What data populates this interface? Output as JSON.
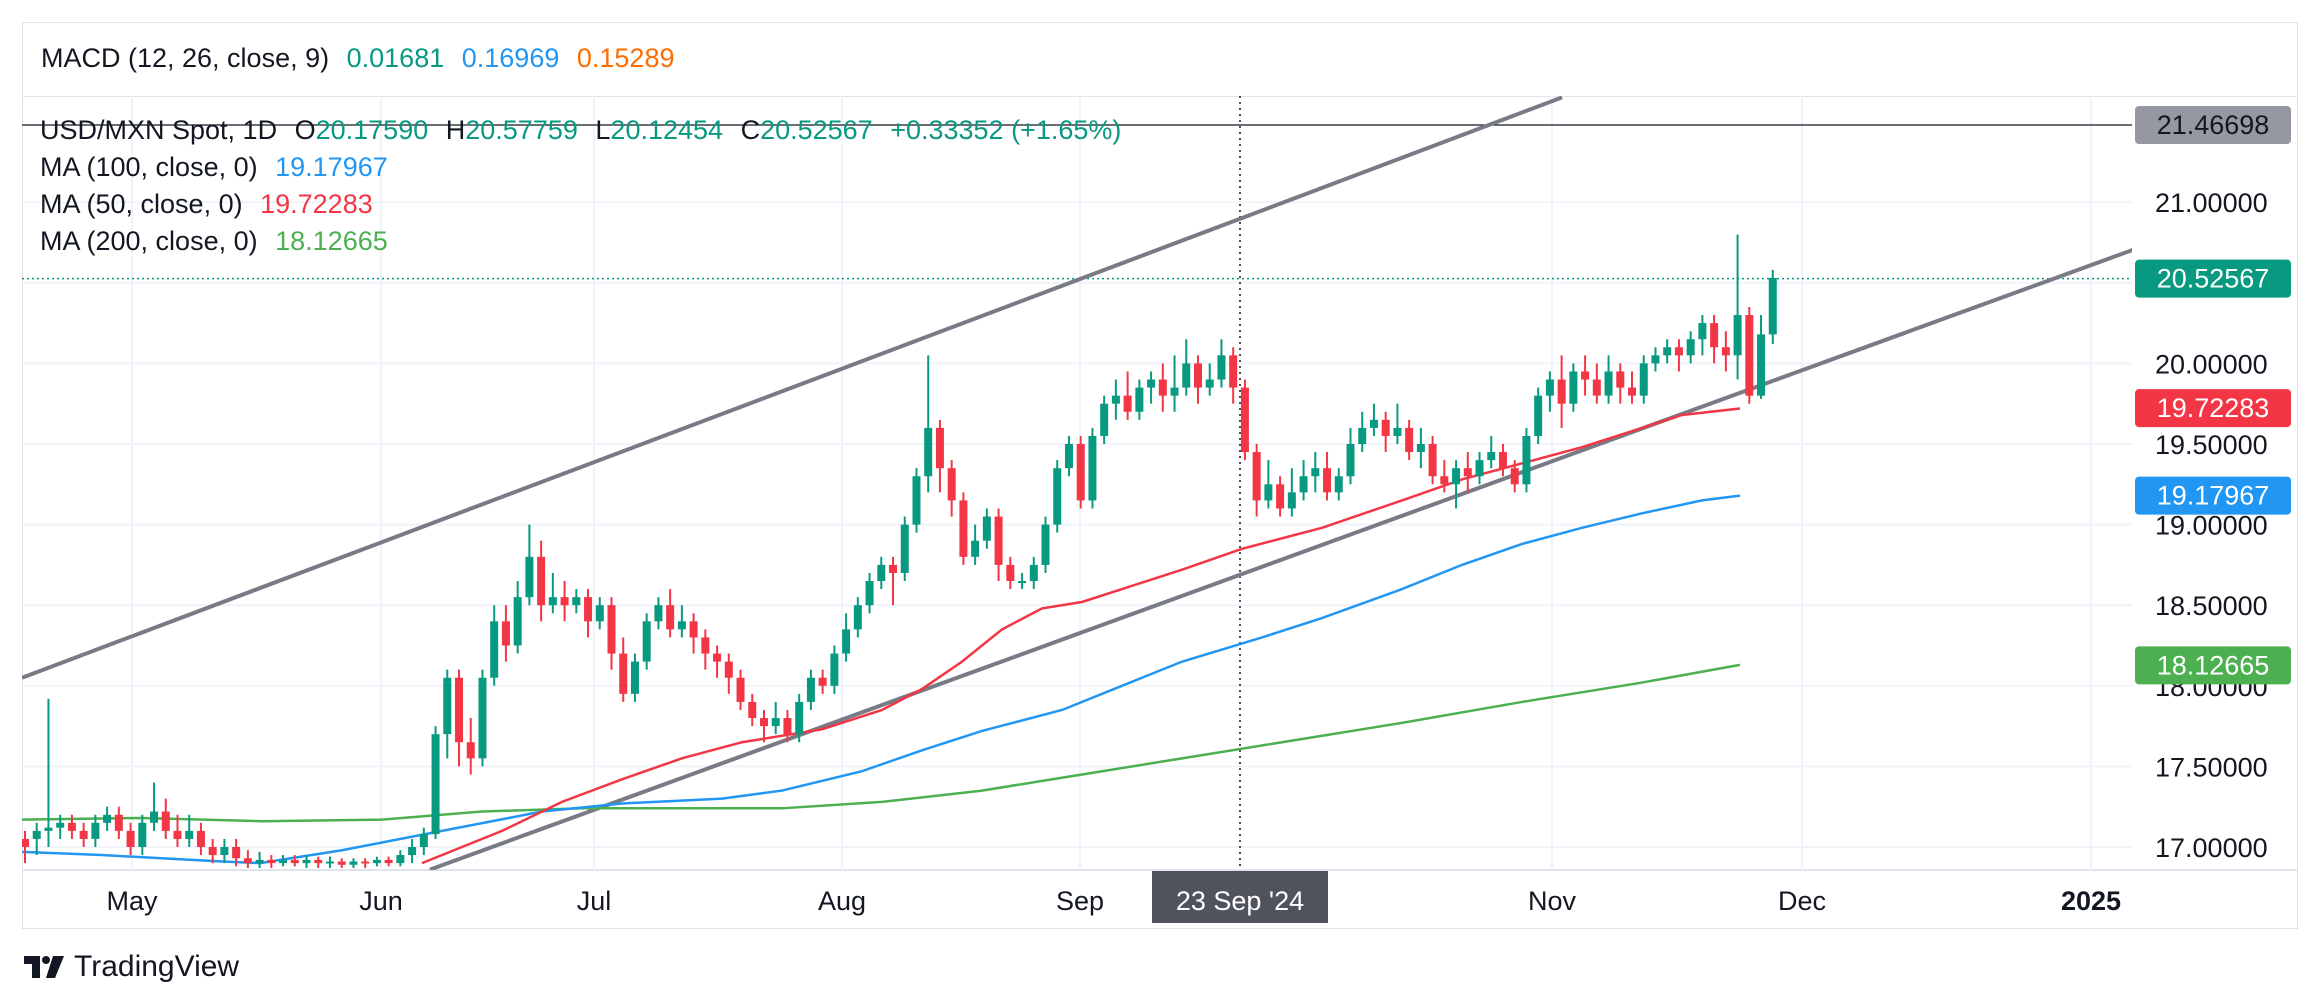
{
  "macd": {
    "label": "MACD (12, 26, close, 9)",
    "v1": "0.01681",
    "v2": "0.16969",
    "v3": "0.15289",
    "c1": "#089981",
    "c2": "#2196f3",
    "c3": "#ff6d00"
  },
  "header": {
    "symbol": "USD/MXN Spot, 1D",
    "o_label": "O",
    "o": "20.17590",
    "h_label": "H",
    "h": "20.57759",
    "l_label": "L",
    "l": "20.12454",
    "c_label": "C",
    "c": "20.52567",
    "change": "+0.33352 (+1.65%)"
  },
  "ma": [
    {
      "label": "MA (100, close, 0)",
      "value": "19.17967",
      "color": "#2196f3"
    },
    {
      "label": "MA (50, close, 0)",
      "value": "19.72283",
      "color": "#f23645"
    },
    {
      "label": "MA (200, close, 0)",
      "value": "18.12665",
      "color": "#4caf50"
    }
  ],
  "crosshair": {
    "x_label": "23 Sep '24",
    "y_label": "21.46698"
  },
  "brand": {
    "name": "TradingView"
  },
  "colors": {
    "up": "#089981",
    "down": "#f23645",
    "channel": "#787b86",
    "grid": "#f0f3fa"
  },
  "chart_data": {
    "type": "candlestick",
    "title": "USD/MXN Spot, 1D",
    "x_labels": [
      "May",
      "Jun",
      "Jul",
      "Aug",
      "Sep",
      "Dec",
      "2025"
    ],
    "x_label_nov": "Nov",
    "y_ticks": [
      "17.00000",
      "17.50000",
      "18.00000",
      "18.50000",
      "19.00000",
      "19.50000",
      "20.00000",
      "21.00000"
    ],
    "ylim": [
      16.86,
      21.65
    ],
    "last_price": "20.52567",
    "price_labels": [
      {
        "value": "20.52567",
        "color": "#089981"
      },
      {
        "value": "19.72283",
        "color": "#f23645"
      },
      {
        "value": "19.17967",
        "color": "#2196f3"
      },
      {
        "value": "18.12665",
        "color": "#4caf50"
      }
    ],
    "candles": [
      [
        17.05,
        17.0,
        16.9,
        17.1
      ],
      [
        17.05,
        17.1,
        16.95,
        17.15
      ],
      [
        17.1,
        17.12,
        17.0,
        17.92
      ],
      [
        17.12,
        17.15,
        17.05,
        17.2
      ],
      [
        17.15,
        17.1,
        17.05,
        17.2
      ],
      [
        17.1,
        17.05,
        17.0,
        17.15
      ],
      [
        17.05,
        17.15,
        17.0,
        17.2
      ],
      [
        17.15,
        17.2,
        17.1,
        17.25
      ],
      [
        17.2,
        17.1,
        17.05,
        17.25
      ],
      [
        17.1,
        17.0,
        16.95,
        17.15
      ],
      [
        17.0,
        17.15,
        16.95,
        17.2
      ],
      [
        17.15,
        17.22,
        17.1,
        17.4
      ],
      [
        17.22,
        17.1,
        17.05,
        17.3
      ],
      [
        17.1,
        17.05,
        17.0,
        17.2
      ],
      [
        17.05,
        17.1,
        17.0,
        17.2
      ],
      [
        17.1,
        17.0,
        16.95,
        17.15
      ],
      [
        17.0,
        16.95,
        16.9,
        17.05
      ],
      [
        16.95,
        17.0,
        16.9,
        17.05
      ],
      [
        17.0,
        16.93,
        16.88,
        17.05
      ],
      [
        16.93,
        16.9,
        16.87,
        16.98
      ],
      [
        16.9,
        16.92,
        16.87,
        16.97
      ],
      [
        16.92,
        16.9,
        16.87,
        16.95
      ],
      [
        16.9,
        16.92,
        16.88,
        16.95
      ],
      [
        16.92,
        16.9,
        16.88,
        16.95
      ],
      [
        16.9,
        16.92,
        16.87,
        16.95
      ],
      [
        16.92,
        16.9,
        16.87,
        16.94
      ],
      [
        16.9,
        16.91,
        16.87,
        16.94
      ],
      [
        16.91,
        16.89,
        16.87,
        16.93
      ],
      [
        16.89,
        16.91,
        16.87,
        16.93
      ],
      [
        16.91,
        16.9,
        16.87,
        16.93
      ],
      [
        16.9,
        16.92,
        16.88,
        16.94
      ],
      [
        16.92,
        16.9,
        16.88,
        16.94
      ],
      [
        16.9,
        16.95,
        16.88,
        16.98
      ],
      [
        16.95,
        17.0,
        16.9,
        17.05
      ],
      [
        17.0,
        17.08,
        16.95,
        17.12
      ],
      [
        17.08,
        17.7,
        17.05,
        17.75
      ],
      [
        17.7,
        18.05,
        17.55,
        18.1
      ],
      [
        18.05,
        17.65,
        17.5,
        18.1
      ],
      [
        17.65,
        17.55,
        17.45,
        17.8
      ],
      [
        17.55,
        18.05,
        17.5,
        18.1
      ],
      [
        18.05,
        18.4,
        18.0,
        18.5
      ],
      [
        18.4,
        18.25,
        18.15,
        18.5
      ],
      [
        18.25,
        18.55,
        18.2,
        18.65
      ],
      [
        18.55,
        18.8,
        18.5,
        19.0
      ],
      [
        18.8,
        18.5,
        18.4,
        18.9
      ],
      [
        18.5,
        18.55,
        18.45,
        18.7
      ],
      [
        18.55,
        18.5,
        18.4,
        18.65
      ],
      [
        18.5,
        18.55,
        18.45,
        18.6
      ],
      [
        18.55,
        18.4,
        18.3,
        18.6
      ],
      [
        18.4,
        18.5,
        18.35,
        18.55
      ],
      [
        18.5,
        18.2,
        18.1,
        18.55
      ],
      [
        18.2,
        17.95,
        17.9,
        18.3
      ],
      [
        17.95,
        18.15,
        17.9,
        18.2
      ],
      [
        18.15,
        18.4,
        18.1,
        18.45
      ],
      [
        18.4,
        18.5,
        18.35,
        18.55
      ],
      [
        18.5,
        18.35,
        18.3,
        18.6
      ],
      [
        18.35,
        18.4,
        18.3,
        18.5
      ],
      [
        18.4,
        18.3,
        18.2,
        18.45
      ],
      [
        18.3,
        18.2,
        18.1,
        18.35
      ],
      [
        18.2,
        18.15,
        18.05,
        18.25
      ],
      [
        18.15,
        18.05,
        17.95,
        18.2
      ],
      [
        18.05,
        17.9,
        17.85,
        18.1
      ],
      [
        17.9,
        17.8,
        17.75,
        17.95
      ],
      [
        17.8,
        17.75,
        17.65,
        17.85
      ],
      [
        17.75,
        17.8,
        17.7,
        17.9
      ],
      [
        17.8,
        17.7,
        17.65,
        17.85
      ],
      [
        17.7,
        17.9,
        17.65,
        17.95
      ],
      [
        17.9,
        18.05,
        17.85,
        18.1
      ],
      [
        18.05,
        18.0,
        17.95,
        18.1
      ],
      [
        18.0,
        18.2,
        17.95,
        18.25
      ],
      [
        18.2,
        18.35,
        18.15,
        18.45
      ],
      [
        18.35,
        18.5,
        18.3,
        18.55
      ],
      [
        18.5,
        18.65,
        18.45,
        18.7
      ],
      [
        18.65,
        18.75,
        18.6,
        18.8
      ],
      [
        18.75,
        18.7,
        18.5,
        18.8
      ],
      [
        18.7,
        19.0,
        18.65,
        19.05
      ],
      [
        19.0,
        19.3,
        18.95,
        19.35
      ],
      [
        19.3,
        19.6,
        19.2,
        20.05
      ],
      [
        19.6,
        19.35,
        19.2,
        19.65
      ],
      [
        19.35,
        19.15,
        19.05,
        19.4
      ],
      [
        19.15,
        18.8,
        18.75,
        19.2
      ],
      [
        18.8,
        18.9,
        18.75,
        19.0
      ],
      [
        18.9,
        19.05,
        18.85,
        19.1
      ],
      [
        19.05,
        18.75,
        18.65,
        19.1
      ],
      [
        18.75,
        18.65,
        18.6,
        18.8
      ],
      [
        18.65,
        18.65,
        18.6,
        18.7
      ],
      [
        18.65,
        18.75,
        18.6,
        18.8
      ],
      [
        18.75,
        19.0,
        18.7,
        19.05
      ],
      [
        19.0,
        19.35,
        18.95,
        19.4
      ],
      [
        19.35,
        19.5,
        19.3,
        19.55
      ],
      [
        19.5,
        19.15,
        19.1,
        19.55
      ],
      [
        19.15,
        19.55,
        19.1,
        19.6
      ],
      [
        19.55,
        19.75,
        19.5,
        19.8
      ],
      [
        19.75,
        19.8,
        19.65,
        19.9
      ],
      [
        19.8,
        19.7,
        19.65,
        19.95
      ],
      [
        19.7,
        19.85,
        19.65,
        19.9
      ],
      [
        19.85,
        19.9,
        19.75,
        19.95
      ],
      [
        19.9,
        19.8,
        19.7,
        20.0
      ],
      [
        19.8,
        19.85,
        19.7,
        20.05
      ],
      [
        19.85,
        20.0,
        19.8,
        20.15
      ],
      [
        20.0,
        19.85,
        19.75,
        20.05
      ],
      [
        19.85,
        19.9,
        19.8,
        20.0
      ],
      [
        19.9,
        20.05,
        19.85,
        20.15
      ],
      [
        20.05,
        19.85,
        19.75,
        20.1
      ],
      [
        19.85,
        19.45,
        19.4,
        19.9
      ],
      [
        19.45,
        19.15,
        19.05,
        19.5
      ],
      [
        19.15,
        19.25,
        19.1,
        19.4
      ],
      [
        19.25,
        19.1,
        19.05,
        19.3
      ],
      [
        19.1,
        19.2,
        19.05,
        19.35
      ],
      [
        19.2,
        19.3,
        19.15,
        19.4
      ],
      [
        19.3,
        19.35,
        19.2,
        19.45
      ],
      [
        19.35,
        19.2,
        19.15,
        19.45
      ],
      [
        19.2,
        19.3,
        19.15,
        19.35
      ],
      [
        19.3,
        19.5,
        19.25,
        19.6
      ],
      [
        19.5,
        19.6,
        19.45,
        19.7
      ],
      [
        19.6,
        19.65,
        19.55,
        19.75
      ],
      [
        19.65,
        19.55,
        19.45,
        19.7
      ],
      [
        19.55,
        19.6,
        19.5,
        19.75
      ],
      [
        19.6,
        19.45,
        19.4,
        19.65
      ],
      [
        19.45,
        19.5,
        19.35,
        19.6
      ],
      [
        19.5,
        19.3,
        19.25,
        19.55
      ],
      [
        19.3,
        19.25,
        19.2,
        19.4
      ],
      [
        19.25,
        19.35,
        19.1,
        19.4
      ],
      [
        19.35,
        19.3,
        19.2,
        19.45
      ],
      [
        19.3,
        19.4,
        19.25,
        19.45
      ],
      [
        19.4,
        19.45,
        19.35,
        19.55
      ],
      [
        19.45,
        19.35,
        19.3,
        19.5
      ],
      [
        19.35,
        19.25,
        19.2,
        19.4
      ],
      [
        19.25,
        19.55,
        19.2,
        19.6
      ],
      [
        19.55,
        19.8,
        19.5,
        19.85
      ],
      [
        19.8,
        19.9,
        19.7,
        19.95
      ],
      [
        19.9,
        19.75,
        19.6,
        20.05
      ],
      [
        19.75,
        19.95,
        19.7,
        20.0
      ],
      [
        19.95,
        19.9,
        19.8,
        20.05
      ],
      [
        19.9,
        19.8,
        19.75,
        20.0
      ],
      [
        19.8,
        19.95,
        19.75,
        20.05
      ],
      [
        19.95,
        19.85,
        19.75,
        20.0
      ],
      [
        19.85,
        19.8,
        19.75,
        19.95
      ],
      [
        19.8,
        20.0,
        19.75,
        20.05
      ],
      [
        20.0,
        20.05,
        19.95,
        20.1
      ],
      [
        20.05,
        20.1,
        20.0,
        20.15
      ],
      [
        20.1,
        20.05,
        19.95,
        20.15
      ],
      [
        20.05,
        20.15,
        20.0,
        20.2
      ],
      [
        20.15,
        20.25,
        20.05,
        20.3
      ],
      [
        20.25,
        20.1,
        20.0,
        20.3
      ],
      [
        20.1,
        20.05,
        19.95,
        20.2
      ],
      [
        20.05,
        20.3,
        19.9,
        20.8
      ],
      [
        20.3,
        19.8,
        19.75,
        20.35
      ],
      [
        19.8,
        20.18,
        19.78,
        20.3
      ],
      [
        20.18,
        20.53,
        20.12,
        20.58
      ]
    ],
    "ma100": [
      [
        0,
        16.97
      ],
      [
        80,
        16.95
      ],
      [
        200,
        16.91
      ],
      [
        238,
        16.9
      ],
      [
        320,
        16.98
      ],
      [
        420,
        17.1
      ],
      [
        520,
        17.22
      ],
      [
        600,
        17.27
      ],
      [
        700,
        17.3
      ],
      [
        760,
        17.35
      ],
      [
        840,
        17.47
      ],
      [
        900,
        17.6
      ],
      [
        960,
        17.72
      ],
      [
        1040,
        17.85
      ],
      [
        1100,
        18.0
      ],
      [
        1160,
        18.15
      ],
      [
        1240,
        18.3
      ],
      [
        1300,
        18.42
      ],
      [
        1380,
        18.6
      ],
      [
        1440,
        18.75
      ],
      [
        1500,
        18.88
      ],
      [
        1560,
        18.98
      ],
      [
        1620,
        19.07
      ],
      [
        1680,
        19.15
      ],
      [
        1718,
        19.18
      ]
    ],
    "ma50": [
      [
        400,
        16.9
      ],
      [
        480,
        17.1
      ],
      [
        540,
        17.28
      ],
      [
        600,
        17.42
      ],
      [
        660,
        17.55
      ],
      [
        720,
        17.65
      ],
      [
        800,
        17.73
      ],
      [
        860,
        17.85
      ],
      [
        900,
        17.98
      ],
      [
        940,
        18.15
      ],
      [
        980,
        18.35
      ],
      [
        1020,
        18.48
      ],
      [
        1060,
        18.52
      ],
      [
        1100,
        18.6
      ],
      [
        1160,
        18.72
      ],
      [
        1220,
        18.85
      ],
      [
        1300,
        18.98
      ],
      [
        1380,
        19.15
      ],
      [
        1440,
        19.28
      ],
      [
        1500,
        19.38
      ],
      [
        1560,
        19.48
      ],
      [
        1620,
        19.6
      ],
      [
        1660,
        19.68
      ],
      [
        1718,
        19.72
      ]
    ],
    "ma200": [
      [
        0,
        17.17
      ],
      [
        120,
        17.18
      ],
      [
        240,
        17.16
      ],
      [
        360,
        17.17
      ],
      [
        460,
        17.22
      ],
      [
        560,
        17.24
      ],
      [
        660,
        17.24
      ],
      [
        760,
        17.24
      ],
      [
        860,
        17.28
      ],
      [
        960,
        17.35
      ],
      [
        1060,
        17.45
      ],
      [
        1160,
        17.55
      ],
      [
        1260,
        17.65
      ],
      [
        1380,
        17.77
      ],
      [
        1500,
        17.9
      ],
      [
        1620,
        18.02
      ],
      [
        1718,
        18.13
      ]
    ],
    "channel_upper": [
      [
        0,
        18.05
      ],
      [
        1540,
        21.65
      ]
    ],
    "channel_lower": [
      [
        408,
        16.86
      ],
      [
        2140,
        20.77
      ]
    ]
  }
}
